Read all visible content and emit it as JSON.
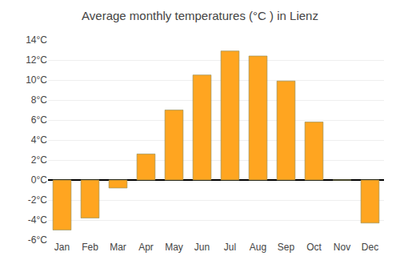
{
  "chart_data": {
    "type": "bar",
    "title": "Average monthly temperatures (°C ) in Lienz",
    "categories": [
      "Jan",
      "Feb",
      "Mar",
      "Apr",
      "May",
      "Jun",
      "Jul",
      "Aug",
      "Sep",
      "Oct",
      "Nov",
      "Dec"
    ],
    "values": [
      -5.0,
      -3.8,
      -0.8,
      2.6,
      7.0,
      10.5,
      12.9,
      12.4,
      9.9,
      5.8,
      0.0,
      -4.3
    ],
    "color": "#FFA520",
    "ylim": [
      -6,
      14
    ],
    "yticks": [
      {
        "value": -6,
        "label": "-6°C"
      },
      {
        "value": -4,
        "label": "-4°C"
      },
      {
        "value": -2,
        "label": "-2°C"
      },
      {
        "value": 0,
        "label": "0°C"
      },
      {
        "value": 2,
        "label": "2°C"
      },
      {
        "value": 4,
        "label": "4°C"
      },
      {
        "value": 6,
        "label": "6°C"
      },
      {
        "value": 8,
        "label": "8°C"
      },
      {
        "value": 10,
        "label": "10°C"
      },
      {
        "value": 12,
        "label": "12°C"
      },
      {
        "value": 14,
        "label": "14°C"
      }
    ],
    "grid": true
  }
}
